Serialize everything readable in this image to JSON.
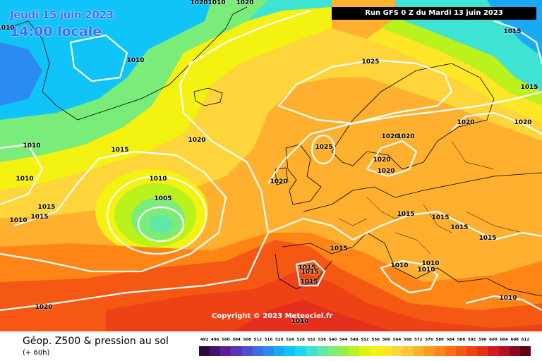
{
  "header": {
    "date_line": "Jeudi 15 juin 2023",
    "time_line": "14:00 locale",
    "run_banner": "Run GFS 0 Z du Mardi 13 juin 2023"
  },
  "copyright": "Copyright © 2023 Meteociel.fr",
  "footer": {
    "title": "Géop. Z500 & pression au sol",
    "subtitle": "(+ 60h)"
  },
  "legend": {
    "values": [
      "492",
      "496",
      "500",
      "504",
      "508",
      "512",
      "516",
      "520",
      "524",
      "528",
      "532",
      "536",
      "540",
      "544",
      "548",
      "552",
      "556",
      "560",
      "564",
      "568",
      "572",
      "576",
      "580",
      "584",
      "588",
      "592",
      "596",
      "600",
      "604",
      "608",
      "612"
    ],
    "colors": [
      "#2b0a3d",
      "#46126b",
      "#5e1d92",
      "#5a35b5",
      "#4c4fd0",
      "#3a6ee6",
      "#2a8cf3",
      "#1aa9f7",
      "#10c3f8",
      "#1fd6f0",
      "#3fe3d3",
      "#5fe9a8",
      "#79ec7a",
      "#97ee49",
      "#b9f21c",
      "#dbf509",
      "#f4f210",
      "#fde726",
      "#fed53a",
      "#ffc43c",
      "#ffb02e",
      "#ff9b20",
      "#ff8616",
      "#fb6f12",
      "#f55812",
      "#ee4216",
      "#e52e1e",
      "#cf1c22",
      "#b01222",
      "#8c0a1e",
      "#5c0514"
    ]
  },
  "isobars": [
    {
      "text": "1010",
      "pos": "tl-a"
    },
    {
      "text": "1010",
      "pos": "greenland-w"
    },
    {
      "text": "1010",
      "pos": "atl-w1"
    },
    {
      "text": "1010",
      "pos": "atl-w2"
    },
    {
      "text": "1015",
      "pos": "atl-w3"
    },
    {
      "text": "1015",
      "pos": "atl-w4"
    },
    {
      "text": "1010",
      "pos": "atl-w5"
    },
    {
      "text": "1015",
      "pos": "atl-mid"
    },
    {
      "text": "1020",
      "pos": "atl-n"
    },
    {
      "text": "1010",
      "pos": "low-1"
    },
    {
      "text": "1005",
      "pos": "low-2"
    },
    {
      "text": "1020",
      "pos": "top-a"
    },
    {
      "text": "1010",
      "pos": "top-b"
    },
    {
      "text": "1020",
      "pos": "top-c"
    },
    {
      "text": "1025",
      "pos": "nsea"
    },
    {
      "text": "1025",
      "pos": "norway-sea"
    },
    {
      "text": "1020",
      "pos": "uk"
    },
    {
      "text": "1020",
      "pos": "scand-a"
    },
    {
      "text": "1020",
      "pos": "scand-b"
    },
    {
      "text": "1020",
      "pos": "baltic-a"
    },
    {
      "text": "1020",
      "pos": "baltic-b"
    },
    {
      "text": "1020",
      "pos": "russia-a"
    },
    {
      "text": "1020",
      "pos": "russia-b"
    },
    {
      "text": "1015",
      "pos": "ne-a"
    },
    {
      "text": "1015",
      "pos": "ne-b"
    },
    {
      "text": "1015",
      "pos": "alps"
    },
    {
      "text": "1015",
      "pos": "balkan-a"
    },
    {
      "text": "1015",
      "pos": "balkan-b"
    },
    {
      "text": "1015",
      "pos": "black-sea"
    },
    {
      "text": "1015",
      "pos": "biscay"
    },
    {
      "text": "1015",
      "pos": "iberia-a"
    },
    {
      "text": "1015",
      "pos": "iberia-b"
    },
    {
      "text": "1015",
      "pos": "iberia-c"
    },
    {
      "text": "1010",
      "pos": "italy"
    },
    {
      "text": "1010",
      "pos": "adriatic-a"
    },
    {
      "text": "1010",
      "pos": "adriatic-b"
    },
    {
      "text": "1010",
      "pos": "greece"
    },
    {
      "text": "1020",
      "pos": "atl-sw"
    },
    {
      "text": "1010",
      "pos": "bottom"
    }
  ]
}
